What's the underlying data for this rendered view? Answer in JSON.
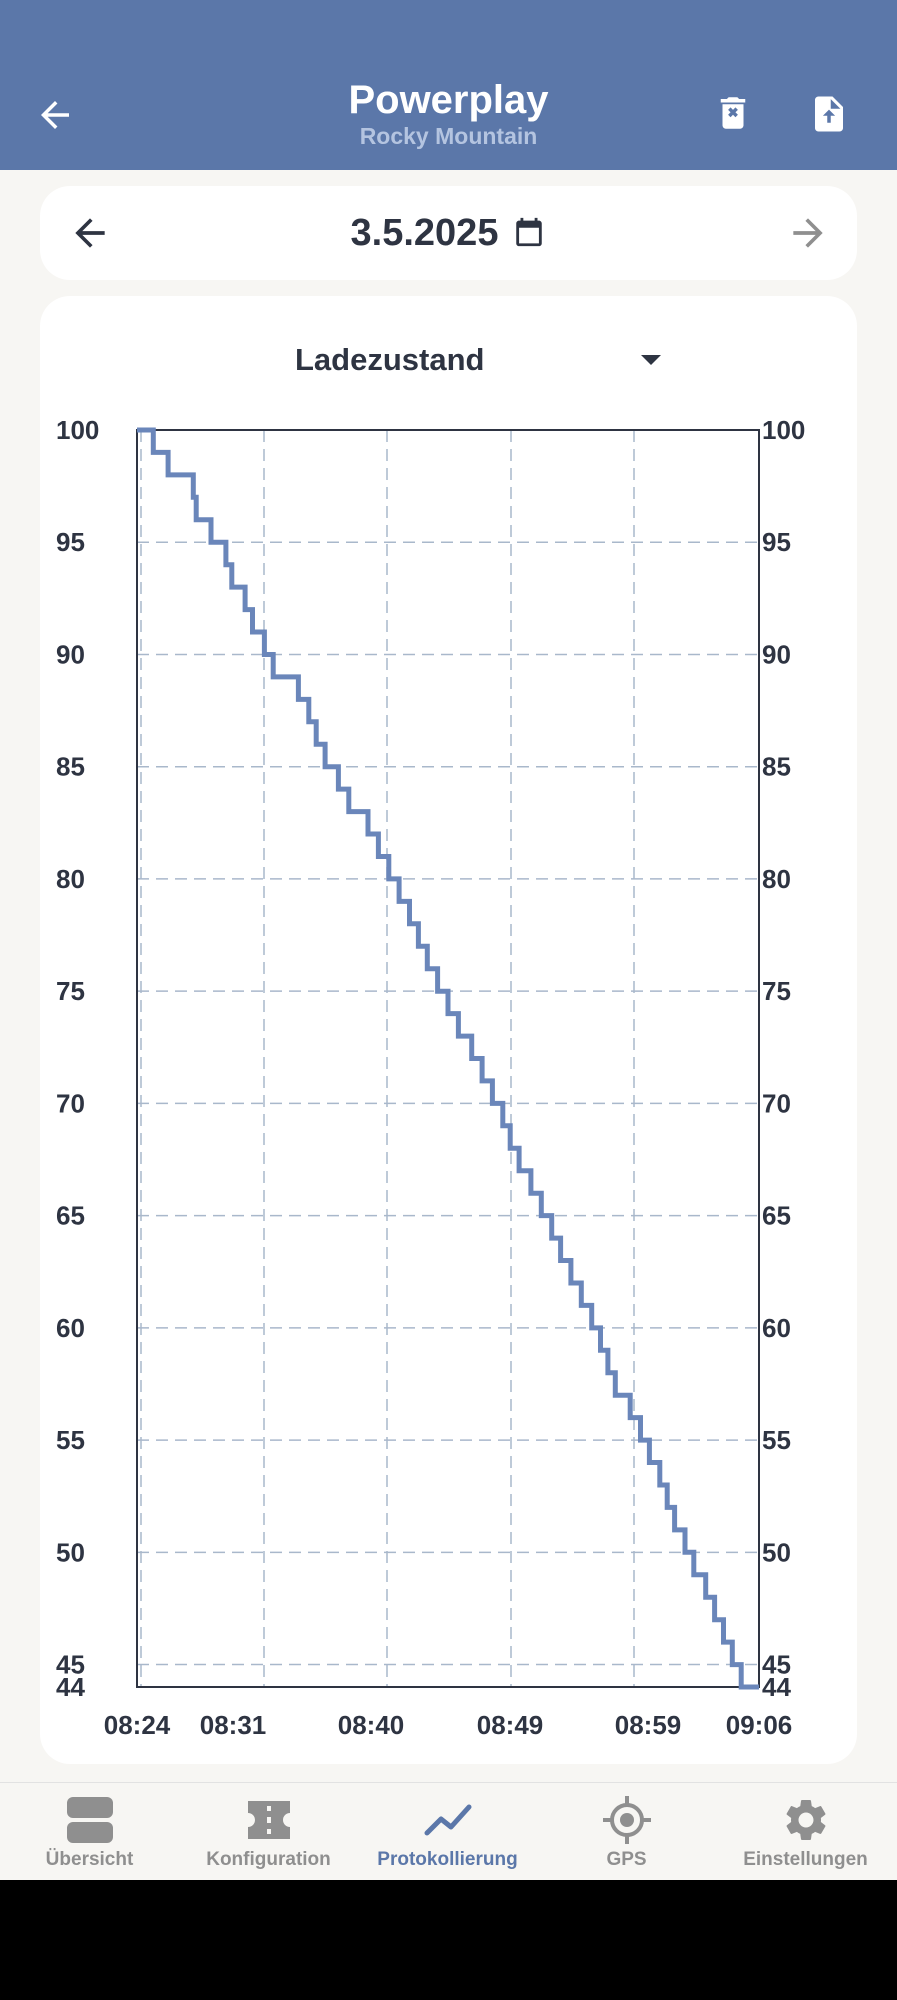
{
  "header": {
    "title": "Powerplay",
    "subtitle": "Rocky Mountain",
    "back_icon": "arrow-left-icon",
    "delete_icon": "delete-file-icon",
    "export_icon": "upload-file-icon",
    "background_color": "#5b77a9"
  },
  "date_nav": {
    "date": "3.5.2025",
    "prev_icon": "arrow-left-icon",
    "calendar_icon": "calendar-icon",
    "next_icon": "arrow-right-icon"
  },
  "metric_select": {
    "selected": "Ladezustand",
    "icon": "dropdown-caret-icon"
  },
  "chart_data": {
    "type": "line",
    "step": true,
    "color": "#6a86ba",
    "title": "",
    "xlabel": "",
    "ylabel": "",
    "ylim": [
      44,
      100
    ],
    "y_ticks": [
      100,
      95,
      90,
      85,
      80,
      75,
      70,
      65,
      60,
      55,
      50,
      45,
      44
    ],
    "y_axis_right": true,
    "grid": true,
    "x_ticks": [
      "08:24",
      "08:31",
      "08:40",
      "08:49",
      "08:59",
      "09:06"
    ],
    "series": [
      {
        "x": [
          1.1,
          2.1,
          3.8,
          4.0,
          5.0,
          6.0,
          6.4,
          7.3,
          7.8,
          8.6,
          9.2,
          10.9,
          11.6,
          12.1,
          12.7,
          13.6,
          14.3,
          15.6,
          16.3,
          17.0,
          17.7,
          18.4,
          19.0,
          19.6,
          20.3,
          21.0,
          21.7,
          22.6,
          23.3,
          24.0,
          24.7,
          25.2,
          25.8,
          26.6,
          27.3,
          28.0,
          28.6,
          29.3,
          30.0,
          30.7,
          31.3,
          31.8,
          32.3,
          33.3,
          34.0,
          34.6,
          35.3,
          35.8,
          36.3,
          37.0,
          37.6,
          38.4,
          39.0,
          39.6,
          40.2,
          40.8
        ],
        "y": [
          100,
          99,
          98,
          97,
          96,
          95,
          94,
          93,
          92,
          91,
          90,
          89,
          88,
          87,
          86,
          85,
          84,
          83,
          82,
          81,
          80,
          79,
          78,
          77,
          76,
          75,
          74,
          73,
          72,
          71,
          70,
          69,
          68,
          67,
          66,
          65,
          64,
          63,
          62,
          61,
          60,
          59,
          58,
          57,
          56,
          55,
          54,
          53,
          52,
          51,
          50,
          49,
          48,
          47,
          46,
          45
        ],
        "x_unit": "minutes after 08:24",
        "x_end": 42.0,
        "y_end": 44
      }
    ]
  },
  "bottom_nav": {
    "items": [
      {
        "label": "Übersicht",
        "icon": "overview-icon",
        "active": false
      },
      {
        "label": "Konfiguration",
        "icon": "ticket-icon",
        "active": false
      },
      {
        "label": "Protokollierung",
        "icon": "chart-line-icon",
        "active": true
      },
      {
        "label": "GPS",
        "icon": "gps-icon",
        "active": false
      },
      {
        "label": "Einstellungen",
        "icon": "gear-icon",
        "active": false
      }
    ],
    "active_color": "#5b77a9",
    "inactive_color": "#8f8f8f"
  }
}
